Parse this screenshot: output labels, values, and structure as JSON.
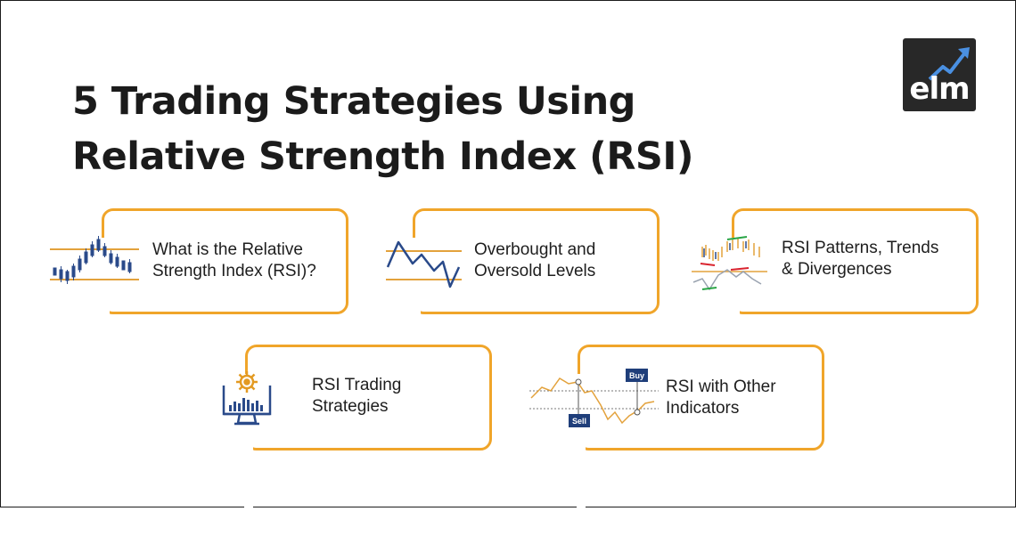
{
  "title": {
    "line1": "5 Trading Strategies Using",
    "line2": "Relative Strength Index (RSI)"
  },
  "logo": {
    "text": "elm",
    "icon": "trend-arrow-icon",
    "background": "#282828"
  },
  "accent_color": "#f0a52a",
  "cards": [
    {
      "icon": "candlestick-chart-icon",
      "lines": [
        "What is the Relative",
        "Strength Index (RSI)?"
      ]
    },
    {
      "icon": "zigzag-line-chart-icon",
      "lines": [
        "Overbought and",
        "Oversold Levels"
      ]
    },
    {
      "icon": "divergence-chart-icon",
      "lines": [
        "RSI Patterns, Trends",
        "& Divergences"
      ]
    },
    {
      "icon": "monitor-gear-chart-icon",
      "lines": [
        "RSI Trading",
        "Strategies"
      ]
    },
    {
      "icon": "buy-sell-chart-icon",
      "lines": [
        "RSI with Other",
        "Indicators"
      ],
      "tags": {
        "buy": "Buy",
        "sell": "Sell"
      }
    }
  ]
}
